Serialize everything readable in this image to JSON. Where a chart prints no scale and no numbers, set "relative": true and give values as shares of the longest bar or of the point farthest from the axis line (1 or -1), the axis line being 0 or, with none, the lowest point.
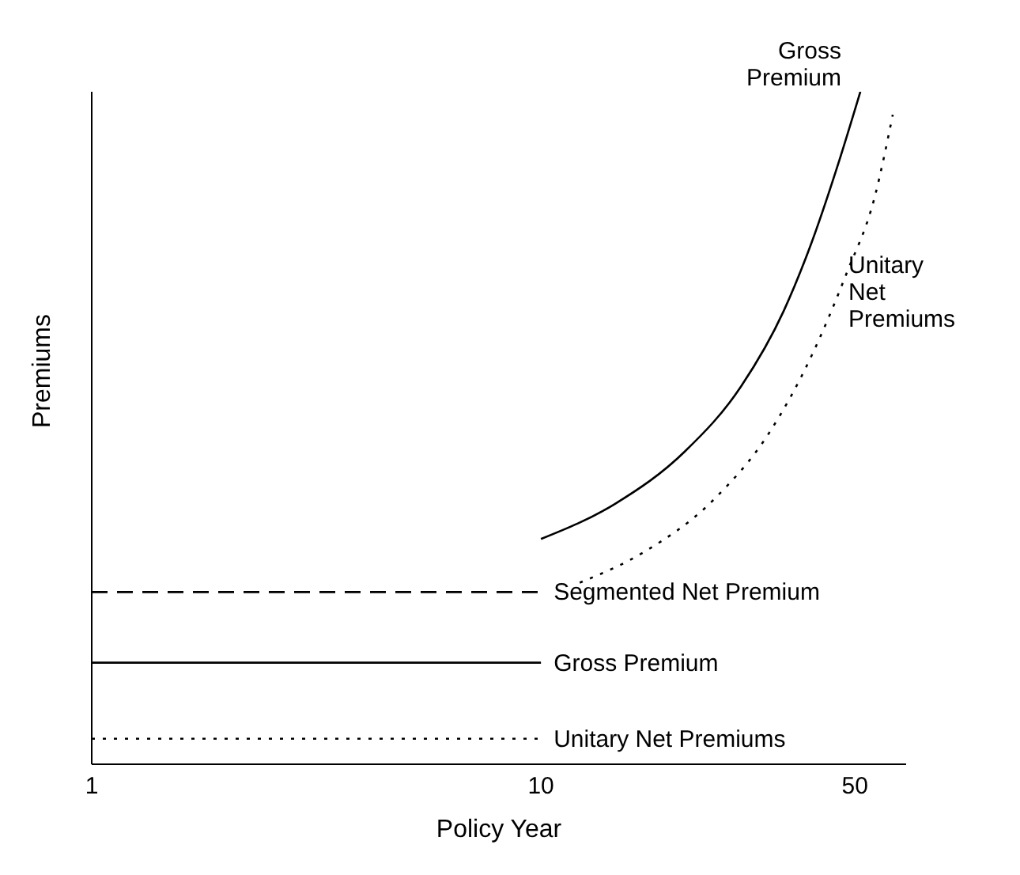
{
  "chart_data": {
    "type": "line",
    "relative": true,
    "xlabel": "Policy Year",
    "ylabel": "Premiums",
    "log": "x",
    "xlim": [
      1,
      65
    ],
    "xticks": [
      1,
      10,
      50
    ],
    "grid": false,
    "legend": false,
    "marker": "none",
    "series": [
      {
        "name": "Segmented Net Premium",
        "color": "#000000",
        "line_style": "dashed",
        "x": [
          1,
          10
        ],
        "values": [
          0.256,
          0.256
        ]
      },
      {
        "name": "Gross Premium",
        "color": "#000000",
        "line_style": "solid",
        "x": [
          1,
          10
        ],
        "values": [
          0.151,
          0.151
        ]
      },
      {
        "name": "Unitary Net Premiums",
        "color": "#000000",
        "line_style": "dotted",
        "x": [
          1,
          10
        ],
        "values": [
          0.038,
          0.038
        ]
      },
      {
        "name": "Gross Premium",
        "color": "#000000",
        "line_style": "solid",
        "x": [
          10,
          14.6,
          20.9,
          27.9,
          34.7,
          40,
          46.2,
          51.4
        ],
        "values": [
          0.335,
          0.387,
          0.465,
          0.562,
          0.674,
          0.775,
          0.899,
          1
        ]
      },
      {
        "name": "Unitary Net Premiums",
        "color": "#000000",
        "line_style": "dotted",
        "x": [
          12.2,
          16.9,
          24.2,
          32.3,
          40,
          47.9,
          55.3,
          60.7
        ],
        "values": [
          0.27,
          0.315,
          0.393,
          0.494,
          0.607,
          0.73,
          0.843,
          0.966
        ]
      }
    ]
  }
}
